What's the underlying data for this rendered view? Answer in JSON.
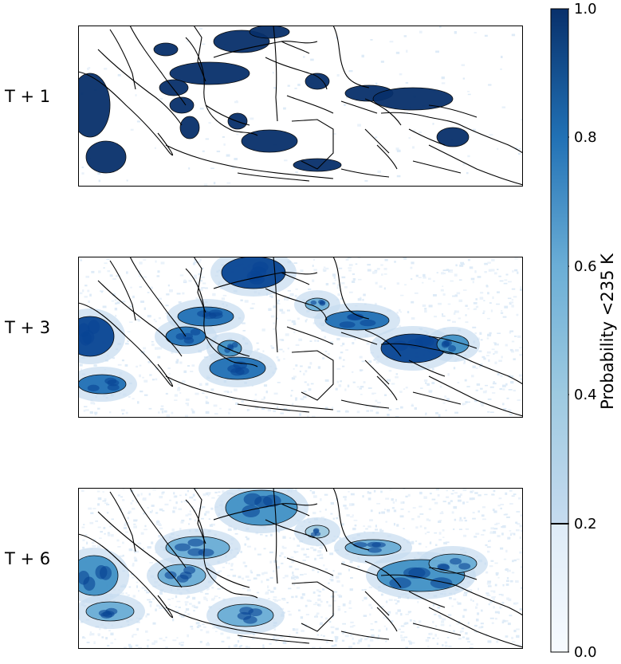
{
  "chart_data": {
    "type": "heatmap",
    "panels": [
      {
        "label": "T + 1"
      },
      {
        "label": "T + 3"
      },
      {
        "label": "T + 6"
      }
    ],
    "colorbar": {
      "label": "Probability <235 K",
      "range": [
        0.0,
        1.0
      ],
      "ticks": [
        "0.0",
        "0.2",
        "0.4",
        "0.6",
        "0.8",
        "1.0"
      ],
      "colormap": "Blues",
      "colors": {
        "low": "#f7fbff",
        "mid": "#6baed6",
        "high": "#08306b"
      }
    },
    "contour_threshold": 0.2
  }
}
